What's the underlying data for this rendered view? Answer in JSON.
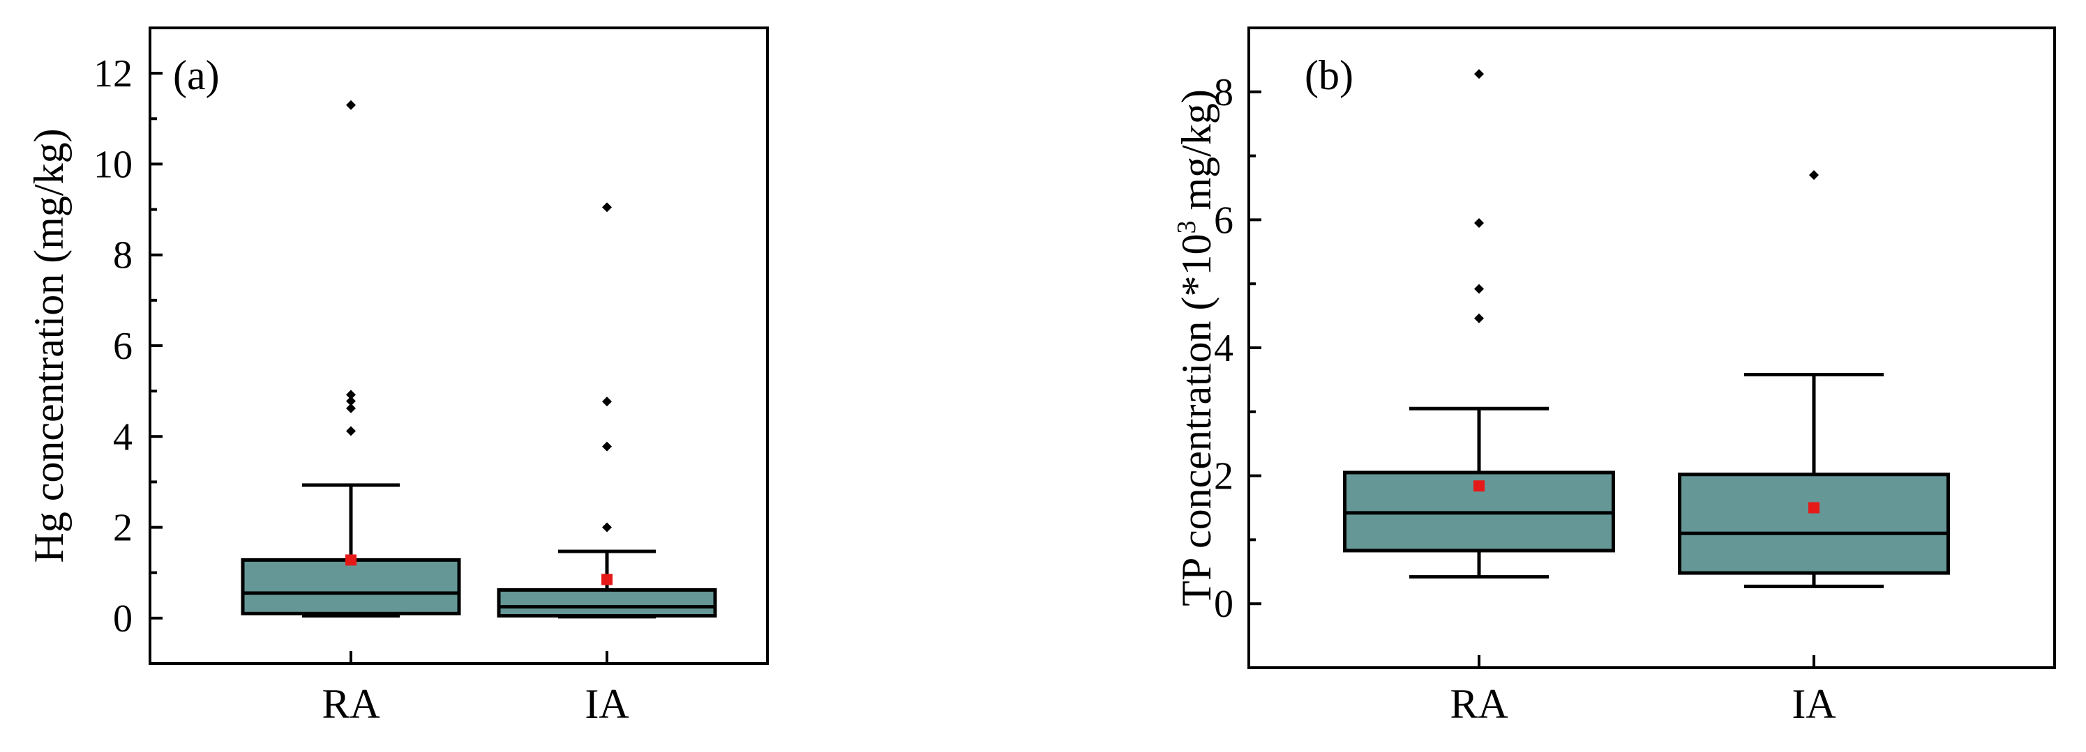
{
  "colors": {
    "box_fill": "#659797",
    "mean_marker": "#e61919",
    "outlier": "#000000",
    "axis": "#000000"
  },
  "chart_data": [
    {
      "type": "box",
      "panel_label": "(a)",
      "ylabel": "Hg concentration (mg/kg)",
      "xlabel": "",
      "ylim": [
        -1,
        13
      ],
      "yticks": [
        0,
        2,
        4,
        6,
        8,
        10,
        12
      ],
      "ytick_labels": [
        "0",
        "2",
        "4",
        "6",
        "8",
        "10",
        "12"
      ],
      "categories": [
        "RA",
        "IA"
      ],
      "boxes": [
        {
          "category": "RA",
          "whisker_low": 0.05,
          "q1": 0.1,
          "median": 0.55,
          "q3": 1.28,
          "whisker_high": 2.93,
          "mean": 1.28,
          "outliers": [
            4.12,
            4.62,
            4.78,
            4.92,
            11.3
          ]
        },
        {
          "category": "IA",
          "whisker_low": 0.03,
          "q1": 0.05,
          "median": 0.25,
          "q3": 0.62,
          "whisker_high": 1.47,
          "mean": 0.85,
          "outliers": [
            2.0,
            3.78,
            4.77,
            9.05
          ]
        }
      ]
    },
    {
      "type": "box",
      "panel_label": "(b)",
      "ylabel": "TP concentration (*10",
      "ylabel_sup": "3",
      "ylabel_tail": " mg/kg)",
      "xlabel": "",
      "ylim": [
        -1,
        9
      ],
      "yticks": [
        0,
        2,
        4,
        6,
        8
      ],
      "ytick_labels": [
        "0",
        "2",
        "4",
        "6",
        "8"
      ],
      "categories": [
        "RA",
        "IA"
      ],
      "boxes": [
        {
          "category": "RA",
          "whisker_low": 0.42,
          "q1": 0.83,
          "median": 1.42,
          "q3": 2.05,
          "whisker_high": 3.05,
          "mean": 1.84,
          "outliers": [
            4.46,
            4.92,
            5.95,
            8.28
          ]
        },
        {
          "category": "IA",
          "whisker_low": 0.27,
          "q1": 0.48,
          "median": 1.1,
          "q3": 2.02,
          "whisker_high": 3.58,
          "mean": 1.5,
          "outliers": [
            6.7
          ]
        }
      ]
    }
  ]
}
